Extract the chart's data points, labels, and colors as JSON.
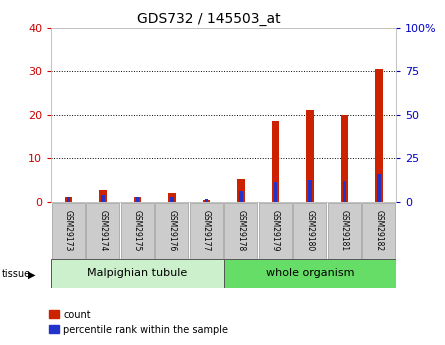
{
  "title": "GDS732 / 145503_at",
  "samples": [
    "GSM29173",
    "GSM29174",
    "GSM29175",
    "GSM29176",
    "GSM29177",
    "GSM29178",
    "GSM29179",
    "GSM29180",
    "GSM29181",
    "GSM29182"
  ],
  "count_values": [
    1.0,
    2.8,
    1.2,
    2.0,
    0.5,
    5.2,
    18.5,
    21.0,
    20.0,
    30.5
  ],
  "percentile_values": [
    2.5,
    4.0,
    2.5,
    2.8,
    1.5,
    6.2,
    11.5,
    12.5,
    12.0,
    16.0
  ],
  "tissue_groups": [
    {
      "label": "Malpighian tubule",
      "start": 0,
      "end": 5,
      "color": "#ccf0cc"
    },
    {
      "label": "whole organism",
      "start": 5,
      "end": 10,
      "color": "#66dd66"
    }
  ],
  "left_ylim": [
    0,
    40
  ],
  "right_ylim": [
    0,
    100
  ],
  "left_yticks": [
    0,
    10,
    20,
    30,
    40
  ],
  "right_yticks": [
    0,
    25,
    50,
    75,
    100
  ],
  "right_yticklabels": [
    "0",
    "25",
    "50",
    "75",
    "100%"
  ],
  "left_color": "#cc0000",
  "right_color": "#0000cc",
  "count_color": "#cc2200",
  "percentile_color": "#2233cc",
  "grid_color": "#000000",
  "tick_bg": "#cccccc"
}
